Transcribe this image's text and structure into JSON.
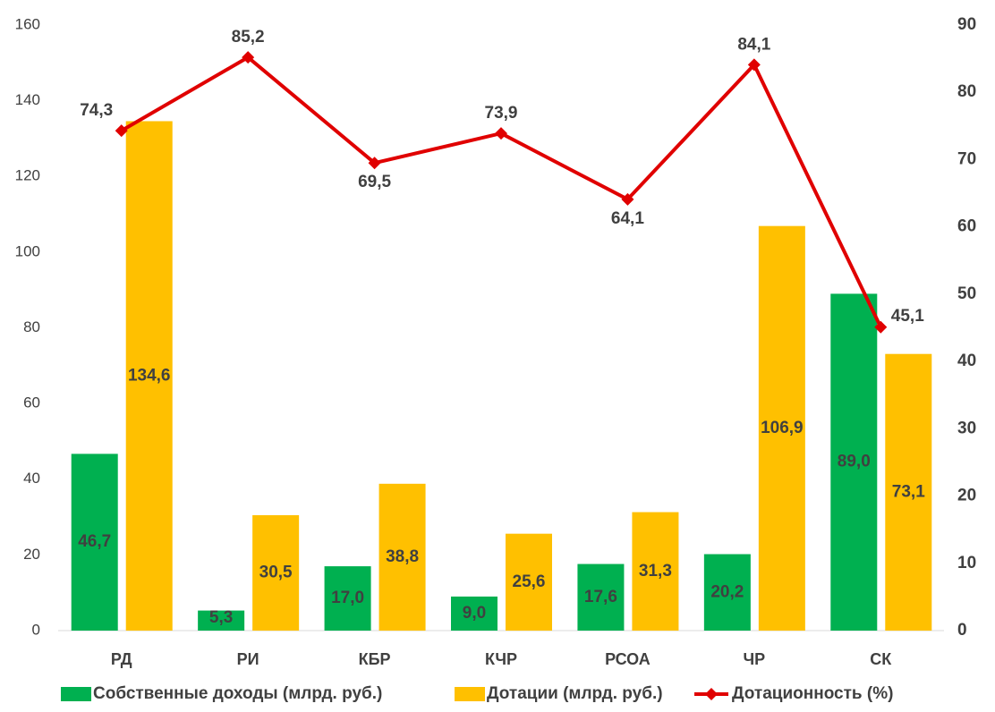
{
  "chart_data": {
    "type": "bar",
    "categories": [
      "РД",
      "РИ",
      "КБР",
      "КЧР",
      "РСОА",
      "ЧР",
      "СК"
    ],
    "series": [
      {
        "name": "Собственные доходы (млрд. руб.)",
        "color": "#00b050",
        "values": [
          46.7,
          5.3,
          17.0,
          9.0,
          17.6,
          20.2,
          89.0
        ],
        "value_labels": [
          "46,7",
          "5,3",
          "17,0",
          "9,0",
          "17,6",
          "20,2",
          "89,0"
        ]
      },
      {
        "name": "Дотации (млрд. руб.)",
        "color": "#ffc000",
        "values": [
          134.6,
          30.5,
          38.8,
          25.6,
          31.3,
          106.9,
          73.1
        ],
        "value_labels": [
          "134,6",
          "30,5",
          "38,8",
          "25,6",
          "31,3",
          "106,9",
          "73,1"
        ]
      },
      {
        "name": "Дотационность (%)",
        "color": "#e00000",
        "type": "line",
        "axis": "y2",
        "values": [
          74.3,
          85.2,
          69.5,
          73.9,
          64.1,
          84.1,
          45.1
        ],
        "value_labels": [
          "74,3",
          "85,2",
          "69,5",
          "73,9",
          "64,1",
          "84,1",
          "45,1"
        ]
      }
    ],
    "ylim": [
      0,
      160
    ],
    "yticks": [
      0,
      20,
      40,
      60,
      80,
      100,
      120,
      140,
      160
    ],
    "y2lim": [
      0,
      90
    ],
    "y2ticks": [
      0,
      10,
      20,
      30,
      40,
      50,
      60,
      70,
      80,
      90
    ],
    "grid": false,
    "legend": "bottom"
  }
}
